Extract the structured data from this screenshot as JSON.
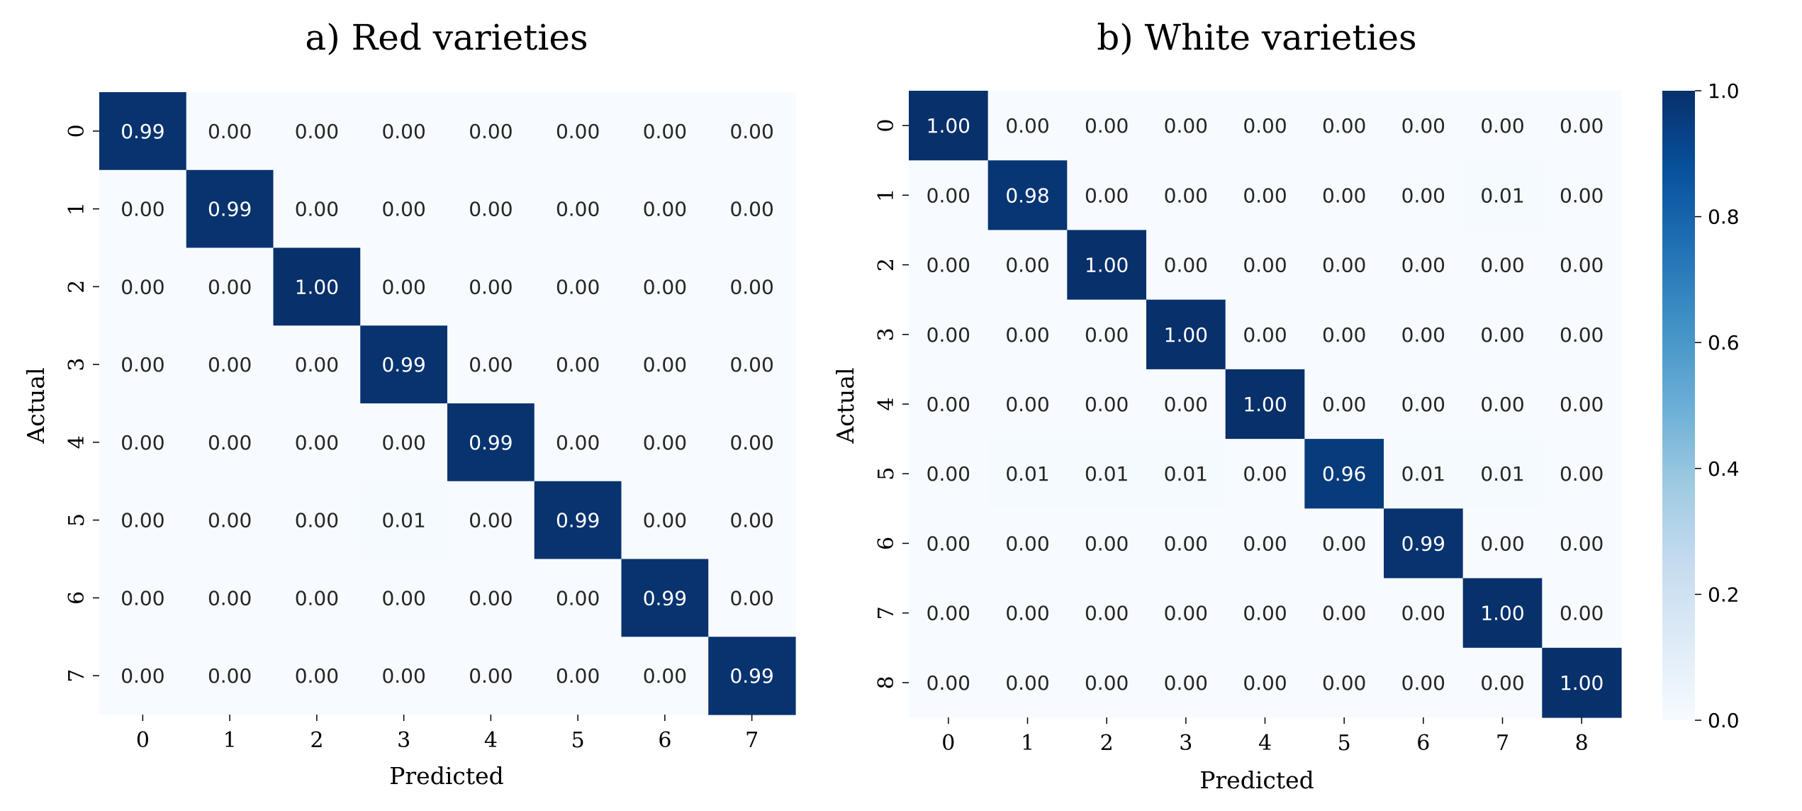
{
  "chart_data": [
    {
      "type": "heatmap",
      "title": "a) Red varieties",
      "xlabel": "Predicted",
      "ylabel": "Actual",
      "x_categories": [
        "0",
        "1",
        "2",
        "3",
        "4",
        "5",
        "6",
        "7"
      ],
      "y_categories": [
        "0",
        "1",
        "2",
        "3",
        "4",
        "5",
        "6",
        "7"
      ],
      "values": [
        [
          0.99,
          0.0,
          0.0,
          0.0,
          0.0,
          0.0,
          0.0,
          0.0
        ],
        [
          0.0,
          0.99,
          0.0,
          0.0,
          0.0,
          0.0,
          0.0,
          0.0
        ],
        [
          0.0,
          0.0,
          1.0,
          0.0,
          0.0,
          0.0,
          0.0,
          0.0
        ],
        [
          0.0,
          0.0,
          0.0,
          0.99,
          0.0,
          0.0,
          0.0,
          0.0
        ],
        [
          0.0,
          0.0,
          0.0,
          0.0,
          0.99,
          0.0,
          0.0,
          0.0
        ],
        [
          0.0,
          0.0,
          0.0,
          0.01,
          0.0,
          0.99,
          0.0,
          0.0
        ],
        [
          0.0,
          0.0,
          0.0,
          0.0,
          0.0,
          0.0,
          0.99,
          0.0
        ],
        [
          0.0,
          0.0,
          0.0,
          0.0,
          0.0,
          0.0,
          0.0,
          0.99
        ]
      ],
      "colormap": "Blues",
      "vmin": 0.0,
      "vmax": 1.0
    },
    {
      "type": "heatmap",
      "title": "b) White varieties",
      "xlabel": "Predicted",
      "ylabel": "Actual",
      "x_categories": [
        "0",
        "1",
        "2",
        "3",
        "4",
        "5",
        "6",
        "7",
        "8"
      ],
      "y_categories": [
        "0",
        "1",
        "2",
        "3",
        "4",
        "5",
        "6",
        "7",
        "8"
      ],
      "values": [
        [
          1.0,
          0.0,
          0.0,
          0.0,
          0.0,
          0.0,
          0.0,
          0.0,
          0.0
        ],
        [
          0.0,
          0.98,
          0.0,
          0.0,
          0.0,
          0.0,
          0.0,
          0.01,
          0.0
        ],
        [
          0.0,
          0.0,
          1.0,
          0.0,
          0.0,
          0.0,
          0.0,
          0.0,
          0.0
        ],
        [
          0.0,
          0.0,
          0.0,
          1.0,
          0.0,
          0.0,
          0.0,
          0.0,
          0.0
        ],
        [
          0.0,
          0.0,
          0.0,
          0.0,
          1.0,
          0.0,
          0.0,
          0.0,
          0.0
        ],
        [
          0.0,
          0.01,
          0.01,
          0.01,
          0.0,
          0.96,
          0.01,
          0.01,
          0.0
        ],
        [
          0.0,
          0.0,
          0.0,
          0.0,
          0.0,
          0.0,
          0.99,
          0.0,
          0.0
        ],
        [
          0.0,
          0.0,
          0.0,
          0.0,
          0.0,
          0.0,
          0.0,
          1.0,
          0.0
        ],
        [
          0.0,
          0.0,
          0.0,
          0.0,
          0.0,
          0.0,
          0.0,
          0.0,
          1.0
        ]
      ],
      "colormap": "Blues",
      "vmin": 0.0,
      "vmax": 1.0,
      "colorbar": {
        "ticks": [
          "0.0",
          "0.2",
          "0.4",
          "0.6",
          "0.8",
          "1.0"
        ],
        "colors": [
          "#f7fbff",
          "#deebf7",
          "#c6dbef",
          "#9ecae1",
          "#6baed6",
          "#4292c6",
          "#2171b5",
          "#08519c",
          "#08306b"
        ]
      }
    }
  ]
}
